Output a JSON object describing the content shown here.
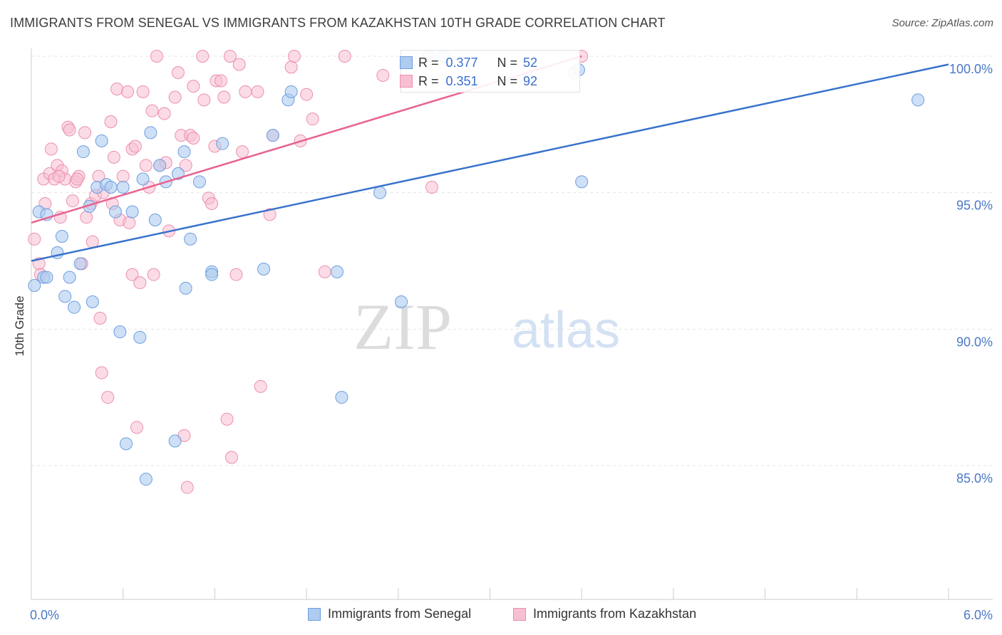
{
  "title": "IMMIGRANTS FROM SENEGAL VS IMMIGRANTS FROM KAZAKHSTAN 10TH GRADE CORRELATION CHART",
  "source": "Source: ZipAtlas.com",
  "watermark": {
    "zip": "ZIP",
    "atlas": "atlas"
  },
  "stats": {
    "senegal": {
      "r_label": "R =",
      "r_value": "0.377",
      "n_label": "N =",
      "n_value": "52"
    },
    "kazakhstan": {
      "r_label": "R =",
      "r_value": "0.351",
      "n_label": "N =",
      "n_value": "92"
    }
  },
  "legend": {
    "senegal": "Immigrants from Senegal",
    "kazakhstan": "Immigrants from Kazakhstan"
  },
  "colors": {
    "senegal_fill": "#aecbf0",
    "senegal_stroke": "#6e9ee0",
    "senegal_line": "#3a73cc",
    "kazakhstan_fill": "#f7c0d2",
    "kazakhstan_stroke": "#ec8fae",
    "kazakhstan_line": "#e8628f",
    "tick_label": "#4a78c8",
    "grid": "#e4e4e4"
  },
  "chart_data": {
    "type": "scatter",
    "title": "IMMIGRANTS FROM SENEGAL VS IMMIGRANTS FROM KAZAKHSTAN 10TH GRADE CORRELATION CHART",
    "xlabel": "",
    "ylabel": "10th Grade",
    "xlim": [
      0,
      6
    ],
    "ylim": [
      80,
      100.7
    ],
    "x_tick_labels": [
      "0.0%",
      "6.0%"
    ],
    "y_ticks": [
      85,
      90,
      95,
      100
    ],
    "y_tick_labels": [
      "85.0%",
      "90.0%",
      "95.0%",
      "100.0%"
    ],
    "grid": true,
    "series": [
      {
        "name": "Immigrants from Senegal",
        "trend": [
          [
            0,
            92.5
          ],
          [
            6,
            99.7
          ]
        ],
        "points": [
          [
            0.02,
            91.6
          ],
          [
            0.05,
            94.3
          ],
          [
            0.08,
            91.9
          ],
          [
            0.1,
            94.2
          ],
          [
            0.1,
            91.9
          ],
          [
            0.17,
            92.8
          ],
          [
            0.2,
            93.4
          ],
          [
            0.22,
            91.2
          ],
          [
            0.25,
            91.9
          ],
          [
            0.28,
            90.8
          ],
          [
            0.32,
            92.4
          ],
          [
            0.34,
            96.5
          ],
          [
            0.38,
            94.5
          ],
          [
            0.4,
            91.0
          ],
          [
            0.43,
            95.2
          ],
          [
            0.46,
            96.9
          ],
          [
            0.49,
            95.3
          ],
          [
            0.52,
            95.2
          ],
          [
            0.55,
            94.3
          ],
          [
            0.58,
            89.9
          ],
          [
            0.6,
            95.2
          ],
          [
            0.62,
            85.8
          ],
          [
            0.66,
            94.3
          ],
          [
            0.71,
            89.7
          ],
          [
            0.73,
            95.5
          ],
          [
            0.75,
            84.5
          ],
          [
            0.78,
            97.2
          ],
          [
            0.81,
            94.0
          ],
          [
            0.84,
            96.0
          ],
          [
            0.88,
            95.4
          ],
          [
            0.94,
            85.9
          ],
          [
            0.96,
            95.7
          ],
          [
            1.0,
            96.5
          ],
          [
            1.01,
            91.5
          ],
          [
            1.04,
            93.3
          ],
          [
            1.1,
            95.4
          ],
          [
            1.18,
            92.1
          ],
          [
            1.18,
            92.0
          ],
          [
            1.25,
            96.8
          ],
          [
            1.52,
            92.2
          ],
          [
            1.58,
            97.1
          ],
          [
            1.68,
            98.4
          ],
          [
            1.7,
            98.7
          ],
          [
            2.0,
            92.1
          ],
          [
            2.03,
            87.5
          ],
          [
            2.28,
            95.0
          ],
          [
            2.42,
            91.0
          ],
          [
            3.6,
            95.4
          ],
          [
            3.58,
            99.5
          ],
          [
            5.8,
            98.4
          ],
          [
            2.6,
            100.0
          ],
          [
            2.7,
            100.0
          ]
        ]
      },
      {
        "name": "Immigrants from Kazakhstan",
        "trend": [
          [
            0,
            93.9
          ],
          [
            3.6,
            100.0
          ]
        ],
        "points": [
          [
            0.02,
            93.3
          ],
          [
            0.05,
            92.4
          ],
          [
            0.06,
            92.0
          ],
          [
            0.08,
            95.5
          ],
          [
            0.09,
            94.6
          ],
          [
            0.12,
            95.7
          ],
          [
            0.13,
            96.6
          ],
          [
            0.15,
            95.5
          ],
          [
            0.17,
            96.0
          ],
          [
            0.19,
            94.1
          ],
          [
            0.2,
            95.8
          ],
          [
            0.22,
            95.5
          ],
          [
            0.24,
            97.4
          ],
          [
            0.25,
            97.3
          ],
          [
            0.27,
            94.7
          ],
          [
            0.29,
            95.4
          ],
          [
            0.31,
            95.6
          ],
          [
            0.33,
            92.4
          ],
          [
            0.35,
            97.2
          ],
          [
            0.36,
            94.1
          ],
          [
            0.39,
            94.6
          ],
          [
            0.4,
            93.2
          ],
          [
            0.42,
            94.9
          ],
          [
            0.44,
            95.6
          ],
          [
            0.45,
            90.4
          ],
          [
            0.46,
            88.4
          ],
          [
            0.47,
            95.0
          ],
          [
            0.5,
            87.5
          ],
          [
            0.52,
            97.6
          ],
          [
            0.53,
            94.6
          ],
          [
            0.54,
            96.3
          ],
          [
            0.56,
            98.8
          ],
          [
            0.58,
            94.0
          ],
          [
            0.6,
            95.6
          ],
          [
            0.63,
            98.7
          ],
          [
            0.64,
            93.9
          ],
          [
            0.66,
            96.6
          ],
          [
            0.66,
            92.0
          ],
          [
            0.68,
            96.7
          ],
          [
            0.69,
            86.4
          ],
          [
            0.71,
            91.7
          ],
          [
            0.73,
            98.7
          ],
          [
            0.75,
            96.0
          ],
          [
            0.77,
            95.2
          ],
          [
            0.79,
            98.0
          ],
          [
            0.8,
            92.0
          ],
          [
            0.82,
            100.0
          ],
          [
            0.84,
            96.0
          ],
          [
            0.87,
            97.9
          ],
          [
            0.9,
            93.6
          ],
          [
            0.94,
            98.5
          ],
          [
            0.96,
            99.4
          ],
          [
            0.98,
            97.1
          ],
          [
            1.0,
            86.1
          ],
          [
            1.01,
            96.0
          ],
          [
            1.02,
            84.2
          ],
          [
            1.04,
            97.1
          ],
          [
            1.06,
            98.9
          ],
          [
            1.12,
            100.0
          ],
          [
            1.13,
            98.4
          ],
          [
            1.16,
            94.8
          ],
          [
            1.18,
            94.6
          ],
          [
            1.2,
            96.7
          ],
          [
            1.21,
            99.1
          ],
          [
            1.24,
            99.1
          ],
          [
            1.26,
            98.5
          ],
          [
            1.28,
            86.7
          ],
          [
            1.3,
            100.0
          ],
          [
            1.31,
            85.3
          ],
          [
            1.34,
            92.0
          ],
          [
            1.36,
            99.7
          ],
          [
            1.38,
            96.5
          ],
          [
            1.4,
            98.7
          ],
          [
            1.48,
            98.7
          ],
          [
            1.5,
            87.9
          ],
          [
            1.56,
            94.2
          ],
          [
            1.58,
            97.1
          ],
          [
            1.7,
            99.6
          ],
          [
            1.72,
            100.0
          ],
          [
            1.76,
            96.9
          ],
          [
            1.8,
            98.6
          ],
          [
            1.84,
            97.7
          ],
          [
            1.92,
            92.1
          ],
          [
            2.05,
            100.0
          ],
          [
            2.3,
            99.3
          ],
          [
            2.62,
            95.2
          ],
          [
            3.55,
            99.4
          ],
          [
            3.6,
            100.0
          ],
          [
            0.18,
            95.6
          ],
          [
            0.88,
            96.1
          ],
          [
            1.06,
            97.0
          ],
          [
            0.3,
            95.5
          ]
        ]
      }
    ]
  }
}
